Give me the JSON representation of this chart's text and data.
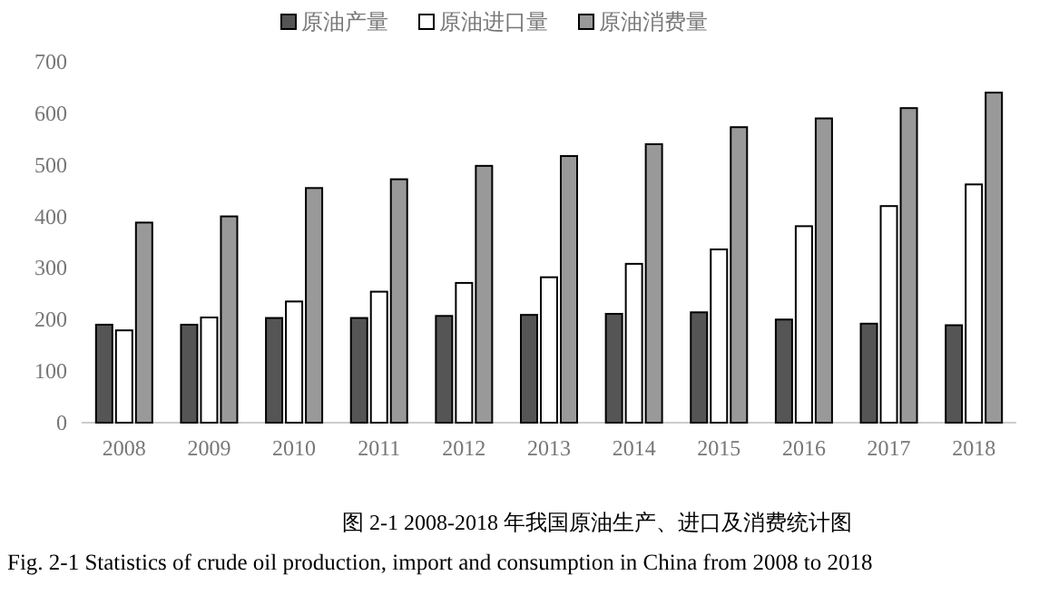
{
  "chart_data": {
    "type": "bar",
    "title": "图 2-1 2008-2018 年我国原油生产、进口及消费统计图",
    "subtitle": "Fig. 2-1 Statistics of crude oil production, import and consumption in China from 2008 to 2018",
    "categories": [
      "2008",
      "2009",
      "2010",
      "2011",
      "2012",
      "2013",
      "2014",
      "2015",
      "2016",
      "2017",
      "2018"
    ],
    "ylim": [
      0,
      700
    ],
    "yticks": [
      0,
      100,
      200,
      300,
      400,
      500,
      600,
      700
    ],
    "grid": false,
    "legend": "top",
    "series": [
      {
        "name": "原油产量",
        "color": "#555555",
        "values": [
          190,
          190,
          203,
          203,
          207,
          209,
          211,
          214,
          200,
          192,
          189
        ]
      },
      {
        "name": "原油进口量",
        "color": "#ffffff",
        "values": [
          179,
          204,
          235,
          254,
          271,
          282,
          308,
          336,
          381,
          420,
          462
        ]
      },
      {
        "name": "原油消费量",
        "color": "#999999",
        "values": [
          388,
          400,
          455,
          472,
          498,
          517,
          540,
          573,
          590,
          610,
          640
        ]
      }
    ]
  }
}
